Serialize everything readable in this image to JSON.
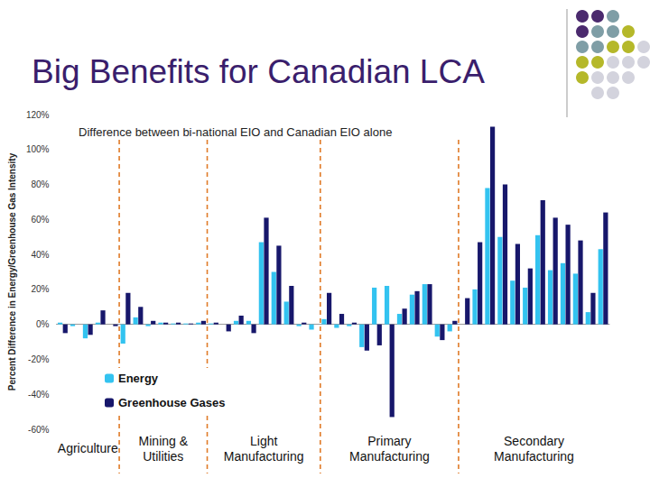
{
  "header": {
    "title": "Big Benefits for Canadian LCA"
  },
  "chart_data": {
    "type": "bar",
    "title": "Difference between bi-national EIO and Canadian EIO alone",
    "y_label": "Percent Difference in Energy/Greenhouse Gas Intensity",
    "categories": [
      null,
      null,
      null,
      null,
      null,
      null,
      null,
      null,
      null,
      null,
      null,
      null,
      null,
      null,
      null,
      null,
      null,
      null,
      null,
      null,
      null,
      null,
      null,
      null,
      null,
      null,
      null,
      null,
      null,
      null,
      null,
      null,
      null,
      null,
      null,
      null,
      null,
      null,
      null,
      null,
      null,
      null,
      null,
      null
    ],
    "groups": [
      "Agriculture",
      "Agriculture",
      "Agriculture",
      "Agriculture",
      "Agriculture",
      "Mining & Utilities",
      "Mining & Utilities",
      "Mining & Utilities",
      "Mining & Utilities",
      "Mining & Utilities",
      "Mining & Utilities",
      "Mining & Utilities",
      "Light Manufacturing",
      "Light Manufacturing",
      "Light Manufacturing",
      "Light Manufacturing",
      "Light Manufacturing",
      "Light Manufacturing",
      "Light Manufacturing",
      "Light Manufacturing",
      "Light Manufacturing",
      "Primary Manufacturing",
      "Primary Manufacturing",
      "Primary Manufacturing",
      "Primary Manufacturing",
      "Primary Manufacturing",
      "Primary Manufacturing",
      "Primary Manufacturing",
      "Primary Manufacturing",
      "Primary Manufacturing",
      "Primary Manufacturing",
      "Primary Manufacturing",
      "Secondary Manufacturing",
      "Secondary Manufacturing",
      "Secondary Manufacturing",
      "Secondary Manufacturing",
      "Secondary Manufacturing",
      "Secondary Manufacturing",
      "Secondary Manufacturing",
      "Secondary Manufacturing",
      "Secondary Manufacturing",
      "Secondary Manufacturing",
      "Secondary Manufacturing",
      "Secondary Manufacturing"
    ],
    "series": [
      {
        "name": "Energy",
        "color": "#33c3f0",
        "values": [
          1,
          -1,
          -8,
          1,
          0,
          -11,
          4,
          -1,
          1,
          0.5,
          0.5,
          1,
          0.5,
          0,
          2,
          2,
          47,
          30,
          13,
          -1,
          -3,
          3,
          -2,
          -1,
          -13,
          21,
          22,
          6,
          17,
          23,
          -7,
          -4,
          0,
          20,
          78,
          50,
          25,
          21,
          51,
          31,
          35,
          29,
          7,
          43
        ]
      },
      {
        "name": "Greenhouse Gases",
        "color": "#17176b",
        "values": [
          -5,
          0,
          -6,
          8,
          -1,
          18,
          10,
          2,
          1,
          1,
          0.5,
          2,
          1,
          -4,
          5,
          -5,
          61,
          45,
          22,
          1,
          0,
          18,
          6,
          1,
          -15,
          -12,
          -53,
          9,
          19,
          23,
          -9,
          2,
          15,
          47,
          113,
          80,
          46,
          32,
          71,
          61,
          57,
          48,
          18,
          64
        ]
      }
    ],
    "ylim": [
      -60,
      120
    ],
    "yticks": [
      {
        "value": -60,
        "label": "-60%"
      },
      {
        "value": -40,
        "label": "-40%"
      },
      {
        "value": -20,
        "label": "-20%"
      },
      {
        "value": 0,
        "label": "0%"
      },
      {
        "value": 20,
        "label": "20%"
      },
      {
        "value": 40,
        "label": "40%"
      },
      {
        "value": 60,
        "label": "60%"
      },
      {
        "value": 80,
        "label": "80%"
      },
      {
        "value": 100,
        "label": "100%"
      },
      {
        "value": 120,
        "label": "120%"
      }
    ],
    "grid": false,
    "legend": "lower left"
  }
}
